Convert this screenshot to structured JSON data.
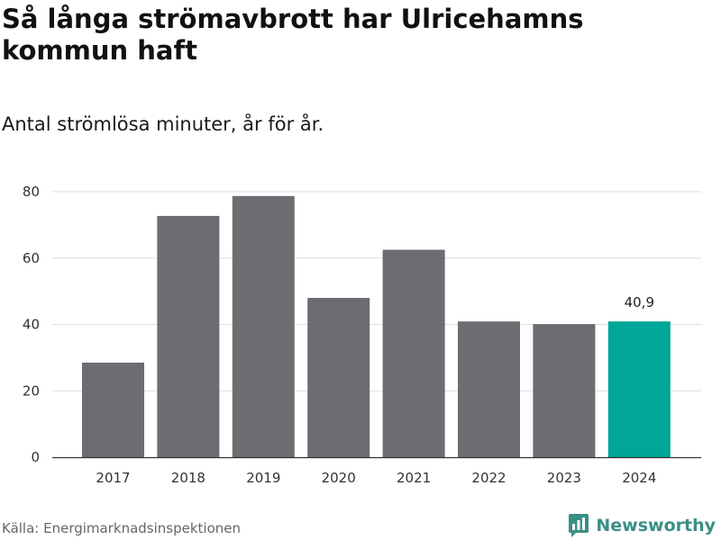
{
  "title": "Så långa strömavbrott har Ulricehamns kommun haft",
  "subtitle": "Antal strömlösa minuter, år för år.",
  "source": "Källa: Energimarknadsinspektionen",
  "brand": {
    "name": "Newsworthy",
    "icon": "newsworthy-logo-icon",
    "color": "#3a8f84"
  },
  "colors": {
    "bar": "#6d6c72",
    "highlight": "#00a698",
    "grid": "#dddddd",
    "axis": "#333333"
  },
  "chart_data": {
    "type": "bar",
    "title": "Så långa strömavbrott har Ulricehamns kommun haft",
    "subtitle": "Antal strömlösa minuter, år för år.",
    "xlabel": "",
    "ylabel": "",
    "categories": [
      "2017",
      "2018",
      "2019",
      "2020",
      "2021",
      "2022",
      "2023",
      "2024"
    ],
    "values": [
      28.5,
      72.7,
      78.7,
      48.0,
      62.5,
      40.9,
      40.1,
      40.9
    ],
    "highlight_index": 7,
    "annotation": {
      "index": 7,
      "text": "40,9"
    },
    "ylim": [
      0,
      80
    ],
    "yticks": [
      0,
      20,
      40,
      60,
      80
    ],
    "grid": true
  }
}
